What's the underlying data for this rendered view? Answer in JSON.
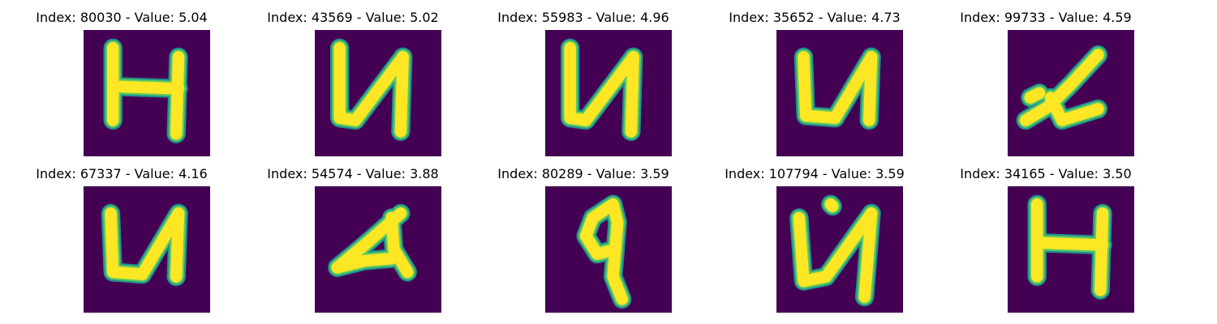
{
  "colors": {
    "background": "#440154",
    "stroke_edge": "#21918c",
    "stroke_mid": "#5ec962",
    "stroke_core": "#fde725"
  },
  "panels": [
    {
      "title": "Index: 80030 - Value: 5.04",
      "glyph": "H"
    },
    {
      "title": "Index: 43569 - Value: 5.02",
      "glyph": "u-slant"
    },
    {
      "title": "Index: 55983 - Value: 4.96",
      "glyph": "u-slant"
    },
    {
      "title": "Index: 35652 - Value: 4.73",
      "glyph": "u-round"
    },
    {
      "title": "Index: 99733 - Value: 4.59",
      "glyph": "cursive"
    },
    {
      "title": "Index: 67337 - Value: 4.16",
      "glyph": "u-round"
    },
    {
      "title": "Index: 54574 - Value: 3.88",
      "glyph": "small-slant"
    },
    {
      "title": "Index: 80289 - Value: 3.59",
      "glyph": "nine"
    },
    {
      "title": "Index: 107794 - Value: 3.59",
      "glyph": "u-dot"
    },
    {
      "title": "Index: 34165 - Value: 3.50",
      "glyph": "H"
    }
  ]
}
